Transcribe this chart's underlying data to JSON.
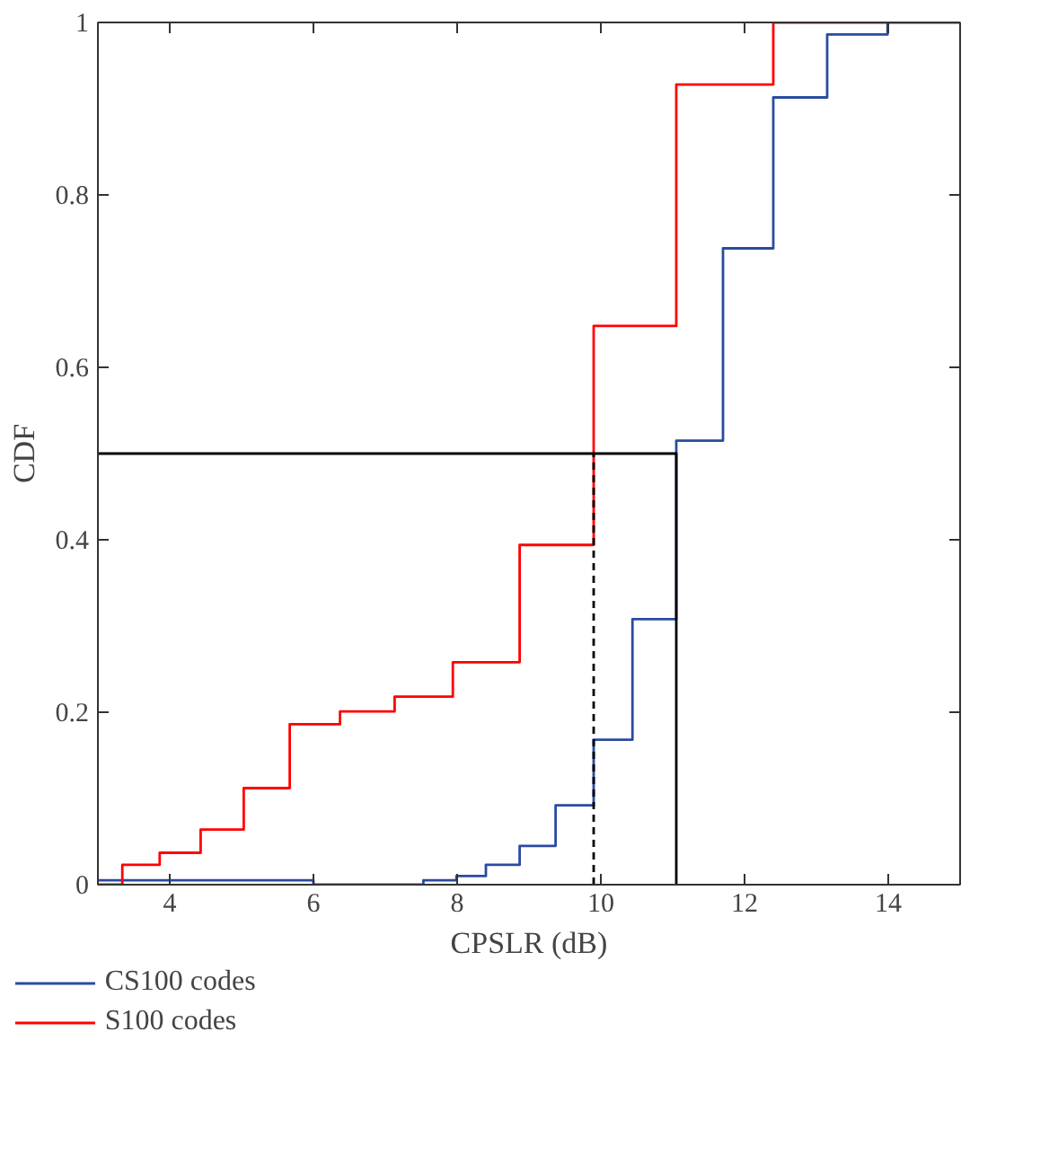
{
  "chart_data": {
    "type": "step",
    "xlabel": "CPSLR (dB)",
    "ylabel": "CDF",
    "xlim": [
      3,
      15
    ],
    "ylim": [
      0,
      1
    ],
    "xticks": [
      4,
      6,
      8,
      10,
      12,
      14
    ],
    "yticks": [
      0,
      0.2,
      0.4,
      0.6,
      0.8,
      1
    ],
    "grid": false,
    "legend": "bottom",
    "series": [
      {
        "name": "CS100 codes",
        "color": "#2b4ba0",
        "x": [
          3,
          6,
          7.53,
          7.99,
          8.4,
          8.87,
          9.37,
          9.9,
          10.44,
          11.05,
          11.7,
          12.4,
          13.15,
          13.99,
          15
        ],
        "values": [
          0.005,
          0,
          0.005,
          0.01,
          0.023,
          0.045,
          0.092,
          0.168,
          0.308,
          0.515,
          0.738,
          0.913,
          0.986,
          1,
          1
        ]
      },
      {
        "name": "S100 codes",
        "color": "#ff0000",
        "x": [
          3,
          3.34,
          3.86,
          4.43,
          5.03,
          5.67,
          6.37,
          7.13,
          7.94,
          8.87,
          9.9,
          11.05,
          12.4,
          14
        ],
        "values": [
          0,
          0.023,
          0.037,
          0.064,
          0.112,
          0.186,
          0.201,
          0.218,
          0.258,
          0.394,
          0.648,
          0.928,
          1,
          1
        ]
      },
      {
        "type": "line",
        "color": "#000000",
        "line_style": "solid",
        "x": [
          3,
          11.05,
          11.05
        ],
        "values": [
          0.5,
          0.5,
          0
        ]
      },
      {
        "type": "line",
        "color": "#000000",
        "line_style": "dashed",
        "x": [
          9.9,
          9.9
        ],
        "values": [
          0,
          0.5
        ]
      }
    ]
  }
}
